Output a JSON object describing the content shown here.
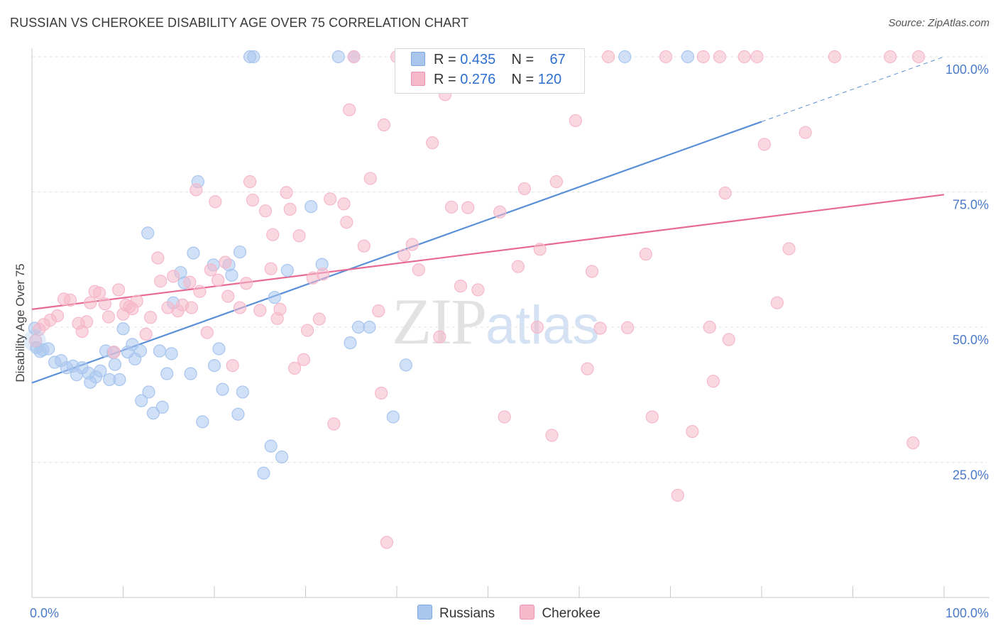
{
  "title": "RUSSIAN VS CHEROKEE DISABILITY AGE OVER 75 CORRELATION CHART",
  "source": "Source: ZipAtlas.com",
  "watermark": {
    "zip": "ZIP",
    "atlas": "atlas"
  },
  "legend": {
    "rows": [
      {
        "r_label": "R =",
        "r_value": "0.435",
        "n_label": "N =",
        "n_value": "67",
        "color": "#a9c6ef"
      },
      {
        "r_label": "R =",
        "r_value": "0.276",
        "n_label": "N =",
        "n_value": "120",
        "color": "#f6b8cb"
      }
    ]
  },
  "bottom_legend": {
    "items": [
      {
        "label": "Russians",
        "color": "#a9c6ef"
      },
      {
        "label": "Cherokee",
        "color": "#f6b8cb"
      }
    ]
  },
  "chart_data": {
    "type": "scatter",
    "title": "RUSSIAN VS CHEROKEE DISABILITY AGE OVER 75 CORRELATION CHART",
    "xlabel": "",
    "ylabel": "Disability Age Over 75",
    "xlim": [
      0,
      100
    ],
    "ylim": [
      0,
      100
    ],
    "x_tick_labels": [
      "0.0%",
      "100.0%"
    ],
    "y_ticks": [
      25,
      50,
      75,
      100
    ],
    "y_tick_labels": [
      "25.0%",
      "50.0%",
      "75.0%",
      "100.0%"
    ],
    "grid": "horizontal dashed",
    "legend_position": "top-center",
    "series": [
      {
        "name": "Russians",
        "color": "#5b8fd8",
        "fill": "#a9c6ef",
        "r": 0.435,
        "n": 67,
        "trend": {
          "x": [
            0,
            80
          ],
          "y": [
            39.7,
            88.0
          ],
          "dashed_to": [
            100,
            100
          ]
        },
        "points": [
          [
            0.3,
            49.8
          ],
          [
            0.5,
            46.2
          ],
          [
            0.9,
            45.5
          ],
          [
            1.2,
            45.8
          ],
          [
            1.8,
            46.0
          ],
          [
            2.5,
            43.5
          ],
          [
            3.2,
            43.8
          ],
          [
            3.8,
            42.5
          ],
          [
            4.5,
            42.8
          ],
          [
            4.9,
            41.2
          ],
          [
            5.5,
            42.5
          ],
          [
            6.2,
            41.5
          ],
          [
            6.4,
            39.8
          ],
          [
            7.0,
            40.8
          ],
          [
            7.5,
            41.9
          ],
          [
            8.1,
            45.6
          ],
          [
            8.5,
            40.3
          ],
          [
            8.9,
            45.3
          ],
          [
            9.1,
            43.1
          ],
          [
            9.6,
            40.3
          ],
          [
            10.0,
            49.7
          ],
          [
            10.5,
            45.4
          ],
          [
            11.0,
            46.8
          ],
          [
            11.3,
            44.1
          ],
          [
            11.9,
            45.6
          ],
          [
            12.0,
            36.4
          ],
          [
            12.8,
            38.0
          ],
          [
            13.3,
            34.1
          ],
          [
            14.0,
            45.6
          ],
          [
            14.3,
            35.2
          ],
          [
            14.8,
            41.4
          ],
          [
            15.3,
            45.1
          ],
          [
            15.5,
            54.5
          ],
          [
            16.3,
            60.1
          ],
          [
            16.7,
            58.2
          ],
          [
            17.4,
            41.4
          ],
          [
            17.7,
            63.7
          ],
          [
            18.2,
            76.9
          ],
          [
            18.7,
            32.5
          ],
          [
            19.9,
            61.5
          ],
          [
            20.0,
            42.9
          ],
          [
            20.5,
            46.0
          ],
          [
            20.9,
            38.5
          ],
          [
            21.6,
            61.5
          ],
          [
            21.9,
            59.6
          ],
          [
            22.6,
            33.9
          ],
          [
            22.8,
            63.9
          ],
          [
            23.1,
            38.0
          ],
          [
            23.9,
            100
          ],
          [
            24.3,
            100
          ],
          [
            25.4,
            23.0
          ],
          [
            26.2,
            28.0
          ],
          [
            26.6,
            55.5
          ],
          [
            27.4,
            26.0
          ],
          [
            30.6,
            72.3
          ],
          [
            31.8,
            61.6
          ],
          [
            33.6,
            100
          ],
          [
            34.9,
            47.1
          ],
          [
            35.3,
            100
          ],
          [
            35.8,
            50.0
          ],
          [
            37.0,
            50.0
          ],
          [
            39.6,
            33.4
          ],
          [
            41.0,
            43.0
          ],
          [
            65.0,
            100
          ],
          [
            71.9,
            100
          ],
          [
            12.7,
            67.4
          ],
          [
            28.0,
            60.5
          ]
        ]
      },
      {
        "name": "Cherokee",
        "color": "#e76a94",
        "fill": "#f6b8cb",
        "r": 0.276,
        "n": 120,
        "trend": {
          "x": [
            0,
            100
          ],
          "y": [
            53.3,
            74.5
          ]
        },
        "points": [
          [
            0.4,
            47.5
          ],
          [
            0.8,
            49.6
          ],
          [
            1.3,
            50.5
          ],
          [
            2.0,
            51.3
          ],
          [
            2.8,
            52.1
          ],
          [
            3.5,
            55.2
          ],
          [
            4.2,
            55.0
          ],
          [
            5.1,
            50.7
          ],
          [
            5.5,
            49.2
          ],
          [
            6.0,
            51.0
          ],
          [
            6.4,
            54.5
          ],
          [
            6.9,
            56.6
          ],
          [
            7.4,
            56.3
          ],
          [
            8.0,
            54.3
          ],
          [
            8.4,
            51.9
          ],
          [
            9.0,
            45.4
          ],
          [
            9.5,
            56.9
          ],
          [
            10.0,
            52.4
          ],
          [
            10.3,
            54.1
          ],
          [
            10.7,
            53.8
          ],
          [
            11.0,
            53.4
          ],
          [
            11.5,
            54.8
          ],
          [
            12.5,
            48.7
          ],
          [
            13.0,
            51.8
          ],
          [
            13.8,
            62.8
          ],
          [
            14.1,
            58.5
          ],
          [
            14.9,
            53.6
          ],
          [
            15.5,
            59.4
          ],
          [
            16.0,
            53.0
          ],
          [
            16.5,
            54.1
          ],
          [
            17.3,
            58.3
          ],
          [
            17.5,
            53.6
          ],
          [
            18.0,
            75.4
          ],
          [
            18.4,
            56.6
          ],
          [
            19.2,
            49.0
          ],
          [
            19.6,
            60.6
          ],
          [
            20.1,
            73.2
          ],
          [
            20.4,
            58.7
          ],
          [
            21.2,
            62.0
          ],
          [
            21.5,
            55.7
          ],
          [
            22.0,
            42.9
          ],
          [
            22.8,
            53.6
          ],
          [
            23.5,
            58.1
          ],
          [
            23.9,
            76.9
          ],
          [
            24.2,
            73.5
          ],
          [
            25.0,
            53.1
          ],
          [
            25.6,
            71.5
          ],
          [
            26.2,
            60.8
          ],
          [
            26.4,
            67.1
          ],
          [
            26.9,
            51.6
          ],
          [
            27.2,
            53.3
          ],
          [
            27.9,
            74.9
          ],
          [
            28.3,
            71.8
          ],
          [
            28.8,
            42.4
          ],
          [
            29.3,
            66.9
          ],
          [
            29.8,
            44.0
          ],
          [
            30.2,
            49.4
          ],
          [
            30.8,
            59.1
          ],
          [
            31.5,
            51.5
          ],
          [
            31.9,
            59.8
          ],
          [
            32.7,
            73.7
          ],
          [
            33.1,
            32.1
          ],
          [
            34.2,
            72.8
          ],
          [
            34.5,
            69.4
          ],
          [
            34.8,
            90.2
          ],
          [
            35.3,
            100
          ],
          [
            36.4,
            65.0
          ],
          [
            37.1,
            77.5
          ],
          [
            38.0,
            53.0
          ],
          [
            38.3,
            37.8
          ],
          [
            38.6,
            87.4
          ],
          [
            38.9,
            10.2
          ],
          [
            40.0,
            100
          ],
          [
            40.8,
            63.3
          ],
          [
            41.7,
            65.3
          ],
          [
            42.4,
            60.6
          ],
          [
            43.9,
            84.1
          ],
          [
            44.2,
            100
          ],
          [
            44.7,
            48.2
          ],
          [
            45.3,
            93.0
          ],
          [
            46.0,
            72.2
          ],
          [
            47.0,
            57.6
          ],
          [
            47.8,
            72.1
          ],
          [
            48.9,
            56.9
          ],
          [
            51.3,
            71.3
          ],
          [
            51.8,
            33.4
          ],
          [
            53.3,
            61.2
          ],
          [
            54.0,
            75.6
          ],
          [
            55.4,
            50.0
          ],
          [
            55.5,
            100
          ],
          [
            55.7,
            64.4
          ],
          [
            57.0,
            30.0
          ],
          [
            57.5,
            76.9
          ],
          [
            58.6,
            100
          ],
          [
            59.6,
            88.2
          ],
          [
            60.9,
            42.3
          ],
          [
            61.4,
            60.3
          ],
          [
            62.3,
            49.8
          ],
          [
            63.2,
            100
          ],
          [
            65.3,
            49.9
          ],
          [
            67.3,
            63.5
          ],
          [
            68.0,
            33.4
          ],
          [
            69.5,
            100
          ],
          [
            70.8,
            18.9
          ],
          [
            72.4,
            30.7
          ],
          [
            73.6,
            100
          ],
          [
            74.3,
            50.0
          ],
          [
            74.7,
            40.0
          ],
          [
            75.4,
            100
          ],
          [
            76.0,
            74.8
          ],
          [
            76.4,
            47.7
          ],
          [
            78.1,
            100
          ],
          [
            79.5,
            100
          ],
          [
            80.3,
            83.8
          ],
          [
            81.7,
            54.5
          ],
          [
            83.0,
            64.5
          ],
          [
            84.8,
            86.0
          ],
          [
            88.0,
            100
          ],
          [
            94.1,
            100
          ],
          [
            96.6,
            28.6
          ],
          [
            97.2,
            100
          ]
        ]
      }
    ]
  }
}
